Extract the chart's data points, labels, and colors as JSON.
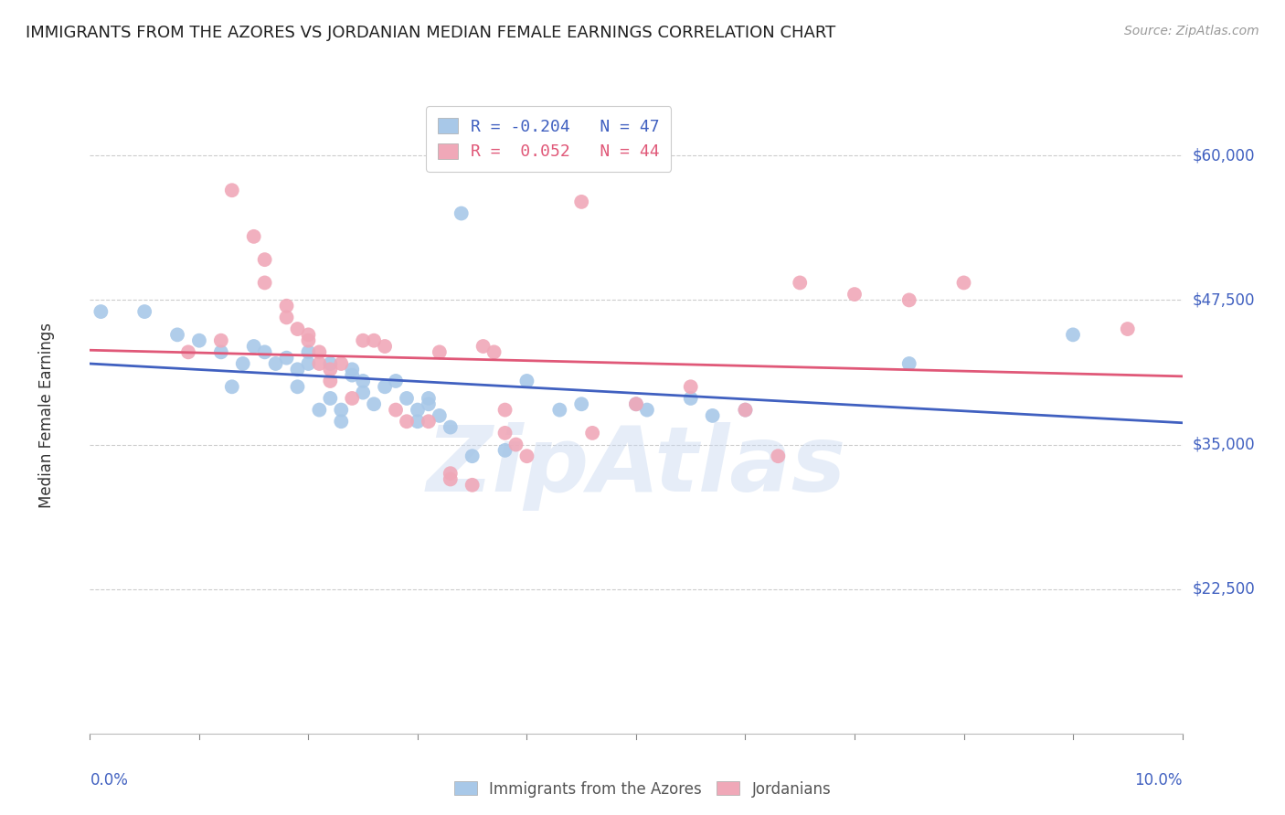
{
  "title": "IMMIGRANTS FROM THE AZORES VS JORDANIAN MEDIAN FEMALE EARNINGS CORRELATION CHART",
  "source": "Source: ZipAtlas.com",
  "ylabel": "Median Female Earnings",
  "yticks": [
    22500,
    35000,
    47500,
    60000
  ],
  "ytick_labels": [
    "$22,500",
    "$35,000",
    "$47,500",
    "$60,000"
  ],
  "xlim": [
    0.0,
    0.1
  ],
  "ylim": [
    10000,
    65000
  ],
  "legend_blue": {
    "R": "-0.204",
    "N": "47",
    "label": "Immigrants from the Azores"
  },
  "legend_pink": {
    "R": "0.052",
    "N": "44",
    "label": "Jordanians"
  },
  "blue_color": "#a8c8e8",
  "pink_color": "#f0a8b8",
  "blue_line_color": "#4060c0",
  "pink_line_color": "#e05878",
  "watermark": "ZipAtlas",
  "blue_scatter": [
    [
      0.001,
      46500
    ],
    [
      0.005,
      46500
    ],
    [
      0.008,
      44500
    ],
    [
      0.01,
      44000
    ],
    [
      0.012,
      43000
    ],
    [
      0.013,
      40000
    ],
    [
      0.014,
      42000
    ],
    [
      0.015,
      43500
    ],
    [
      0.016,
      43000
    ],
    [
      0.017,
      42000
    ],
    [
      0.018,
      42500
    ],
    [
      0.019,
      41500
    ],
    [
      0.019,
      40000
    ],
    [
      0.02,
      43000
    ],
    [
      0.02,
      42000
    ],
    [
      0.021,
      38000
    ],
    [
      0.022,
      42000
    ],
    [
      0.022,
      39000
    ],
    [
      0.023,
      38000
    ],
    [
      0.023,
      37000
    ],
    [
      0.024,
      41500
    ],
    [
      0.024,
      41000
    ],
    [
      0.025,
      40500
    ],
    [
      0.025,
      39500
    ],
    [
      0.026,
      38500
    ],
    [
      0.027,
      40000
    ],
    [
      0.028,
      40500
    ],
    [
      0.029,
      39000
    ],
    [
      0.03,
      38000
    ],
    [
      0.03,
      37000
    ],
    [
      0.031,
      39000
    ],
    [
      0.031,
      38500
    ],
    [
      0.032,
      37500
    ],
    [
      0.033,
      36500
    ],
    [
      0.034,
      55000
    ],
    [
      0.035,
      34000
    ],
    [
      0.038,
      34500
    ],
    [
      0.04,
      40500
    ],
    [
      0.043,
      38000
    ],
    [
      0.045,
      38500
    ],
    [
      0.05,
      38500
    ],
    [
      0.051,
      38000
    ],
    [
      0.055,
      39000
    ],
    [
      0.057,
      37500
    ],
    [
      0.06,
      38000
    ],
    [
      0.075,
      42000
    ],
    [
      0.09,
      44500
    ]
  ],
  "pink_scatter": [
    [
      0.009,
      43000
    ],
    [
      0.012,
      44000
    ],
    [
      0.013,
      57000
    ],
    [
      0.015,
      53000
    ],
    [
      0.016,
      51000
    ],
    [
      0.016,
      49000
    ],
    [
      0.018,
      47000
    ],
    [
      0.018,
      46000
    ],
    [
      0.019,
      45000
    ],
    [
      0.02,
      44500
    ],
    [
      0.02,
      44000
    ],
    [
      0.021,
      43000
    ],
    [
      0.021,
      42000
    ],
    [
      0.022,
      41500
    ],
    [
      0.022,
      40500
    ],
    [
      0.023,
      42000
    ],
    [
      0.024,
      39000
    ],
    [
      0.025,
      44000
    ],
    [
      0.026,
      44000
    ],
    [
      0.027,
      43500
    ],
    [
      0.028,
      38000
    ],
    [
      0.029,
      37000
    ],
    [
      0.031,
      37000
    ],
    [
      0.032,
      43000
    ],
    [
      0.033,
      32500
    ],
    [
      0.033,
      32000
    ],
    [
      0.035,
      31500
    ],
    [
      0.036,
      43500
    ],
    [
      0.037,
      43000
    ],
    [
      0.038,
      38000
    ],
    [
      0.038,
      36000
    ],
    [
      0.039,
      35000
    ],
    [
      0.04,
      34000
    ],
    [
      0.045,
      56000
    ],
    [
      0.046,
      36000
    ],
    [
      0.05,
      38500
    ],
    [
      0.055,
      40000
    ],
    [
      0.06,
      38000
    ],
    [
      0.063,
      34000
    ],
    [
      0.065,
      49000
    ],
    [
      0.07,
      48000
    ],
    [
      0.075,
      47500
    ],
    [
      0.08,
      49000
    ],
    [
      0.095,
      45000
    ]
  ]
}
